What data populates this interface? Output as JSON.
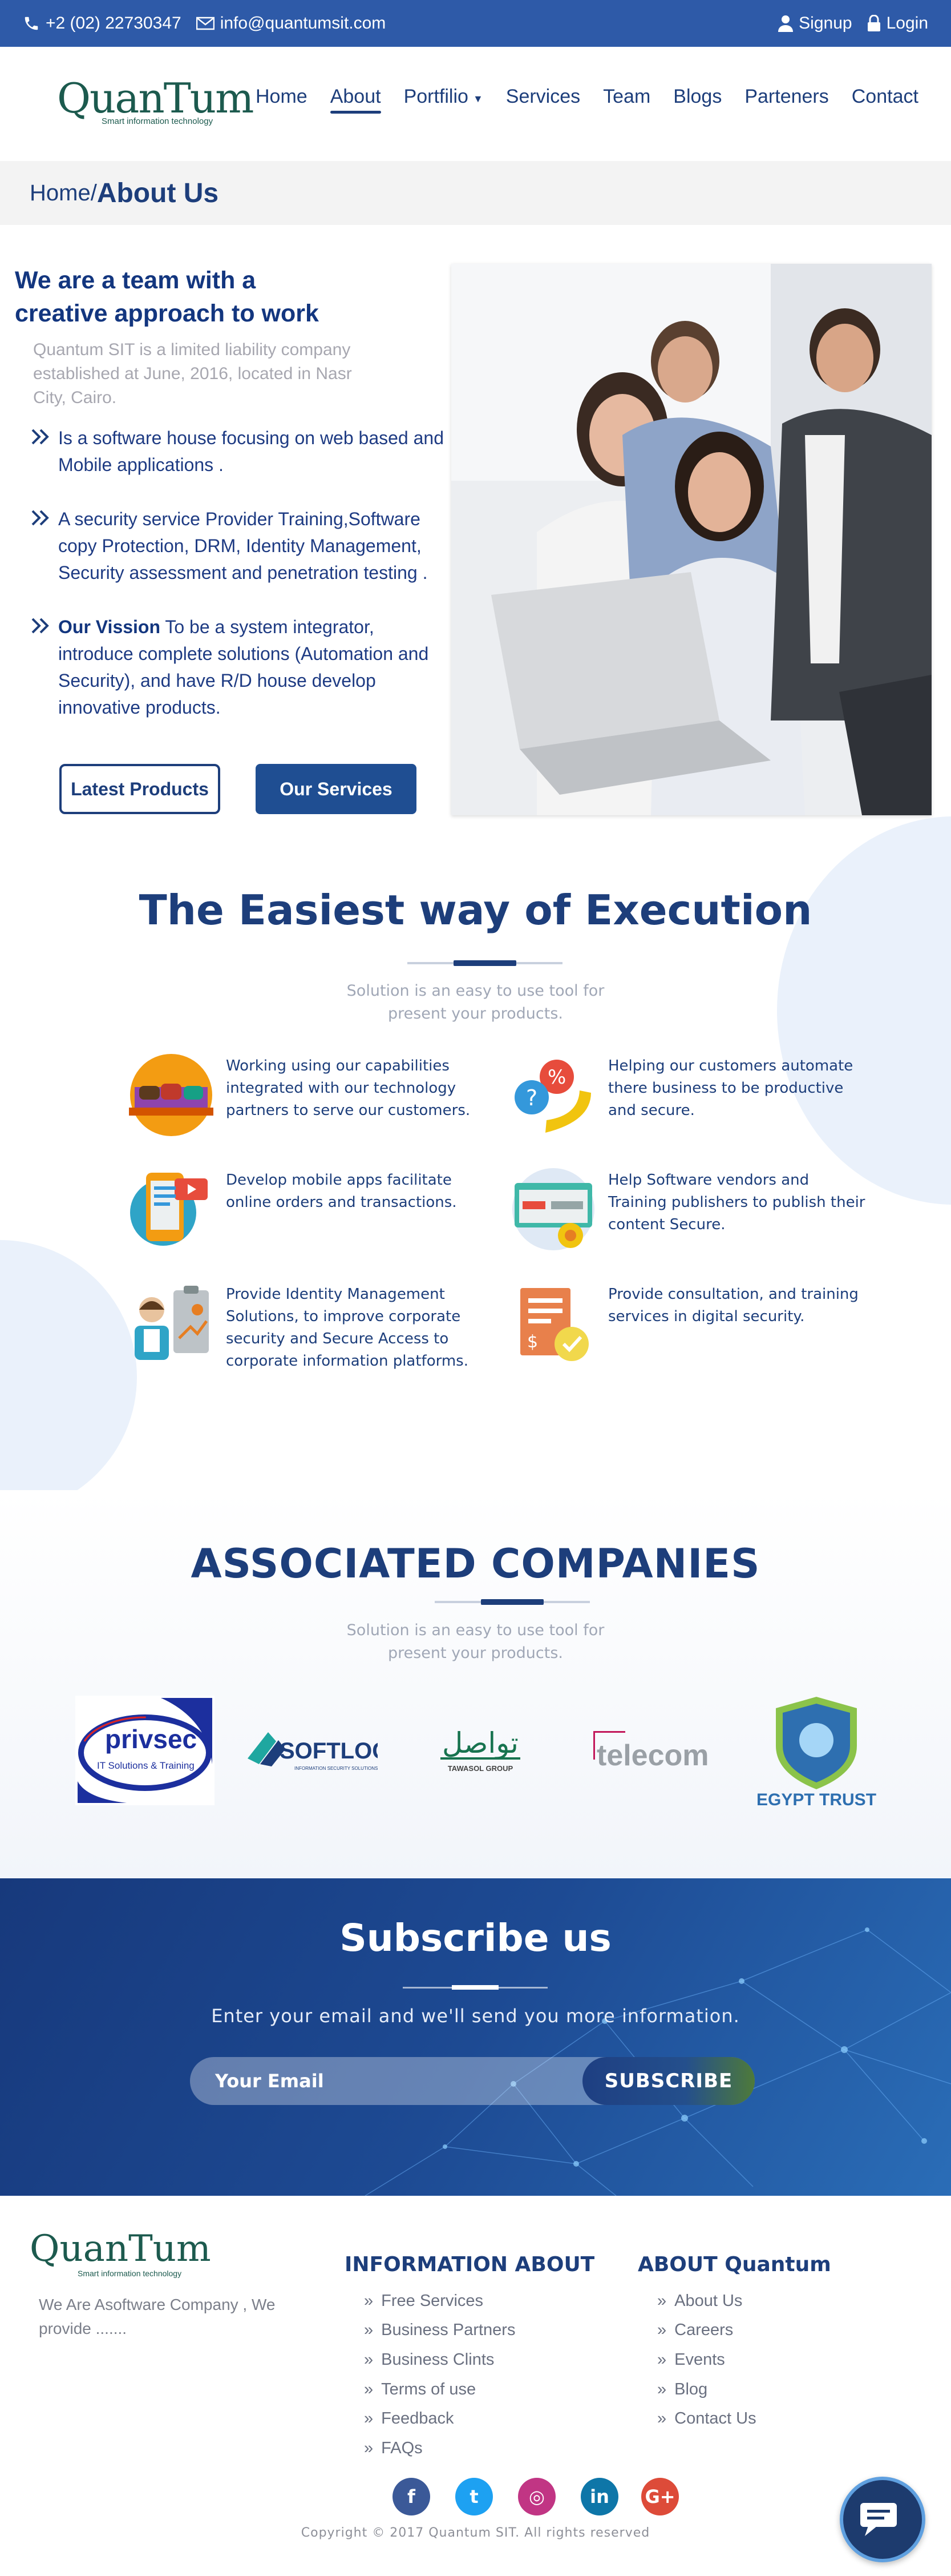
{
  "topbar": {
    "phone": "+2 (02) 22730347",
    "email": "info@quantumsit.com",
    "signup_label": "Signup",
    "login_label": "Login",
    "phone_icon": "phone-icon",
    "mail_icon": "mail-icon",
    "user_icon": "user-icon",
    "lock_icon": "lock-icon"
  },
  "header": {
    "logo_text": "QuanTum",
    "logo_tagline": "Smart information technology",
    "nav": [
      {
        "label": "Home"
      },
      {
        "label": "About",
        "active": true
      },
      {
        "label": "Portfilio",
        "has_dropdown": true
      },
      {
        "label": "Services"
      },
      {
        "label": "Team"
      },
      {
        "label": "Blogs"
      },
      {
        "label": "Parteners"
      },
      {
        "label": "Contact"
      }
    ]
  },
  "breadcrumb": {
    "home": "Home/",
    "current": "About Us"
  },
  "about": {
    "title_line1": "We are a team with a",
    "title_line2": "creative approach to work",
    "subtitle": "Quantum SIT is a limited liability company established at June, 2016, located in Nasr City, Cairo.",
    "bullets": [
      {
        "text": "Is a software house focusing on web based and Mobile applications ."
      },
      {
        "text": "A security service Provider Training,Software copy Protection, DRM, Identity Management, Security assessment and penetration testing ."
      },
      {
        "bold": "Our Vission",
        "text": " To be a system integrator, introduce complete solutions (Automation and Security), and have R/D house develop innovative products."
      }
    ],
    "btn_latest_products": "Latest Products",
    "btn_our_services": "Our Services",
    "photo_alt": "team photo"
  },
  "execution": {
    "title": "The Easiest way of Execution",
    "subtitle_line1": "Solution is an easy to use tool for",
    "subtitle_line2": "present your products.",
    "features": [
      {
        "icon": "team-collaboration-icon",
        "text": "Working using our capabilities integrated with our technology partners to serve our customers."
      },
      {
        "icon": "customer-support-icon",
        "text": "Helping our customers automate there business to be productive and secure."
      },
      {
        "icon": "mobile-app-icon",
        "text": "Develop mobile apps facilitate online orders and transactions."
      },
      {
        "icon": "software-protection-icon",
        "text": "Help Software vendors and Training publishers to publish their content Secure."
      },
      {
        "icon": "identity-management-icon",
        "text": "Provide Identity Management Solutions, to improve corporate security and Secure Access to corporate information platforms."
      },
      {
        "icon": "consultation-icon",
        "text": "Provide consultation, and training services in digital security."
      }
    ]
  },
  "associated": {
    "title": "ASSOCIATED COMPANIES",
    "subtitle_line1": "Solution is an easy to use tool for",
    "subtitle_line2": "present your products.",
    "partners": [
      {
        "name": "privsec",
        "tagline": "IT Solutions & Training"
      },
      {
        "name": "SOFTLOCK",
        "tagline": "INFORMATION SECURITY SOLUTIONS"
      },
      {
        "name": "تواصل",
        "tagline": "TAWASOL GROUP"
      },
      {
        "name": "telecom"
      },
      {
        "name": "EGYPT TRUST"
      }
    ]
  },
  "subscribe": {
    "title": "Subscribe us",
    "text": "Enter your email and we'll send you more information.",
    "placeholder": "Your Email",
    "button": "SUBSCRIBE"
  },
  "footer": {
    "logo_text": "QuanTum",
    "logo_tagline": "Smart information technology",
    "description": "We Are Asoftware Company , We provide .......",
    "info_title": "INFORMATION ABOUT",
    "info_links": [
      "Free Services",
      "Business Partners",
      "Business Clints",
      "Terms of use",
      "Feedback",
      "FAQs"
    ],
    "about_title": "ABOUT Quantum",
    "about_links": [
      "About  Us",
      "Careers",
      "Events",
      "Blog",
      "Contact Us"
    ],
    "social": [
      {
        "icon": "facebook-icon",
        "glyph": "f",
        "color": "#3b5998"
      },
      {
        "icon": "twitter-icon",
        "glyph": "t",
        "color": "#1da1f2"
      },
      {
        "icon": "instagram-icon",
        "glyph": "◎",
        "color": "#c13584"
      },
      {
        "icon": "linkedin-icon",
        "glyph": "in",
        "color": "#0e76a8"
      },
      {
        "icon": "googleplus-icon",
        "glyph": "G+",
        "color": "#dd4b39"
      }
    ],
    "copyright": "Copyright © 2017 Quantum SIT. All rights reserved",
    "chat_icon": "chat-icon"
  }
}
